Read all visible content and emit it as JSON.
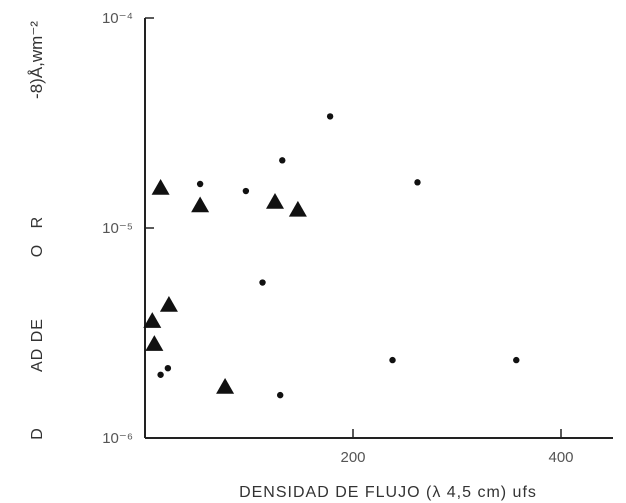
{
  "chart_data": {
    "type": "scatter",
    "title": "",
    "xlabel": "DENSIDAD DE FLUJO (λ 4,5 cm) ufs",
    "ylabel_fragments": [
      "-8)Å,wm⁻²",
      "O R",
      "AD DE",
      "D"
    ],
    "xlim": [
      0,
      450
    ],
    "ylim": [
      1e-06,
      0.0001
    ],
    "y_scale": "log",
    "x_ticks": [
      {
        "value": 200,
        "label": "200"
      },
      {
        "value": 400,
        "label": "400"
      }
    ],
    "y_ticks": [
      {
        "value": 0.0001,
        "label": "10⁻⁴"
      },
      {
        "value": 1e-05,
        "label": "10⁻⁵"
      },
      {
        "value": 1e-06,
        "label": "10⁻⁶"
      }
    ],
    "grid": false,
    "series": [
      {
        "marker": "triangle",
        "color": "#111111",
        "points": [
          {
            "x": 7,
            "y": 3.6e-06
          },
          {
            "x": 9,
            "y": 2.8e-06
          },
          {
            "x": 15,
            "y": 1.55e-05
          },
          {
            "x": 23,
            "y": 4.3e-06
          },
          {
            "x": 53,
            "y": 1.28e-05
          },
          {
            "x": 77,
            "y": 1.75e-06
          },
          {
            "x": 125,
            "y": 1.33e-05
          },
          {
            "x": 147,
            "y": 1.22e-05
          }
        ]
      },
      {
        "marker": "dot",
        "color": "#111111",
        "points": [
          {
            "x": 15,
            "y": 2e-06
          },
          {
            "x": 22,
            "y": 2.15e-06
          },
          {
            "x": 53,
            "y": 1.62e-05
          },
          {
            "x": 97,
            "y": 1.5e-05
          },
          {
            "x": 113,
            "y": 5.5e-06
          },
          {
            "x": 130,
            "y": 1.6e-06
          },
          {
            "x": 132,
            "y": 2.1e-05
          },
          {
            "x": 178,
            "y": 3.4e-05
          },
          {
            "x": 238,
            "y": 2.35e-06
          },
          {
            "x": 262,
            "y": 1.65e-05
          },
          {
            "x": 357,
            "y": 2.35e-06
          }
        ]
      }
    ]
  }
}
